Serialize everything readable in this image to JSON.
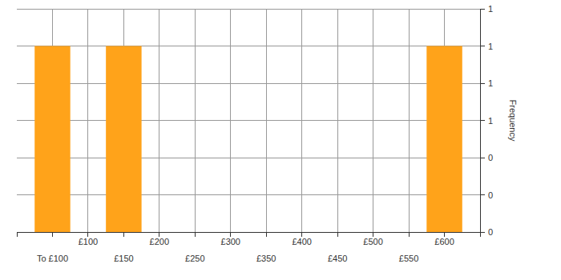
{
  "chart_data": {
    "type": "bar",
    "categories": [
      "To £100",
      "£100",
      "£150",
      "£200",
      "£250",
      "£300",
      "£350",
      "£400",
      "£450",
      "£500",
      "£550",
      "£600"
    ],
    "values": [
      1,
      0,
      1,
      0,
      0,
      0,
      0,
      0,
      0,
      0,
      0,
      1
    ],
    "color": "#ffa31a",
    "y_label": "Frequency",
    "ylim": [
      0,
      1.2
    ],
    "yticks": [
      0,
      {
        "value": 0.2,
        "label": "0"
      },
      {
        "value": 0.4,
        "label": "0"
      },
      {
        "value": 0.6,
        "label": "1"
      },
      {
        "value": 0.8,
        "label": "1"
      },
      1,
      {
        "value": 1.2,
        "label": "1"
      }
    ],
    "grid": true
  }
}
